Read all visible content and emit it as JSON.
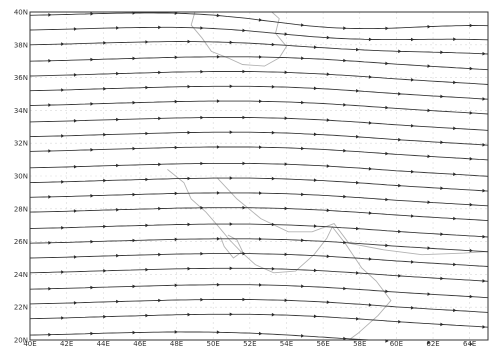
{
  "chart_data": {
    "type": "streamline",
    "x": {
      "range": [
        40,
        65
      ],
      "ticks": [
        40,
        42,
        44,
        46,
        48,
        50,
        52,
        54,
        56,
        58,
        60,
        62,
        64
      ],
      "tick_labels": [
        "40E",
        "42E",
        "44E",
        "46E",
        "48E",
        "50E",
        "52E",
        "54E",
        "56E",
        "58E",
        "60E",
        "62E",
        "64E"
      ]
    },
    "y": {
      "range": [
        20,
        40
      ],
      "ticks": [
        20,
        22,
        24,
        26,
        28,
        30,
        32,
        34,
        36,
        38,
        40
      ],
      "tick_labels": [
        "20N",
        "22N",
        "24N",
        "26N",
        "28N",
        "30N",
        "32N",
        "34N",
        "36N",
        "38N",
        "40N"
      ]
    },
    "grid": "dashed",
    "streamlines": {
      "direction": "eastward",
      "start_lat": [
        20.3,
        21.3,
        22.2,
        23.1,
        24.1,
        25.0,
        25.9,
        26.8,
        27.8,
        28.7,
        29.6,
        30.5,
        31.5,
        32.4,
        33.3,
        34.3,
        35.2,
        36.1,
        37.0,
        38.0,
        38.9,
        39.8
      ],
      "lat_shift": [
        [
          40,
          0.0
        ],
        [
          42,
          0.05
        ],
        [
          44,
          0.12
        ],
        [
          46,
          0.18
        ],
        [
          48,
          0.24
        ],
        [
          50,
          0.27
        ],
        [
          52,
          0.27
        ],
        [
          54,
          0.22
        ],
        [
          56,
          0.12
        ],
        [
          58,
          -0.02
        ],
        [
          60,
          -0.18
        ],
        [
          62,
          -0.32
        ],
        [
          64,
          -0.45
        ],
        [
          65,
          -0.52
        ]
      ],
      "north_bend": {
        "center_lon": 56.5,
        "width": 6,
        "min_lat": 37,
        "max_lat": 40,
        "amount": -0.9
      },
      "south_bend": {
        "center_lon": 57,
        "width": 7,
        "max_lat": 21,
        "amount": -0.25
      }
    },
    "coastlines": [
      [
        [
          49.0,
          40.0
        ],
        [
          48.8,
          39.2
        ],
        [
          49.4,
          38.4
        ],
        [
          49.9,
          37.6
        ],
        [
          50.8,
          37.2
        ],
        [
          51.6,
          36.8
        ],
        [
          52.8,
          36.7
        ],
        [
          53.6,
          37.2
        ],
        [
          54.0,
          37.9
        ],
        [
          53.4,
          38.7
        ],
        [
          53.6,
          39.6
        ],
        [
          53.2,
          40.0
        ]
      ],
      [
        [
          47.5,
          30.4
        ],
        [
          48.4,
          29.6
        ],
        [
          48.8,
          28.6
        ],
        [
          49.6,
          27.8
        ],
        [
          50.3,
          26.9
        ],
        [
          50.9,
          26.1
        ],
        [
          51.5,
          25.4
        ],
        [
          52.3,
          24.6
        ],
        [
          53.3,
          24.1
        ],
        [
          54.5,
          24.2
        ],
        [
          55.5,
          25.2
        ],
        [
          56.2,
          26.2
        ],
        [
          56.5,
          26.9
        ],
        [
          57.2,
          25.9
        ],
        [
          58.1,
          24.4
        ],
        [
          58.9,
          23.6
        ],
        [
          59.7,
          22.4
        ],
        [
          59.0,
          21.5
        ],
        [
          57.9,
          20.4
        ],
        [
          57.4,
          20.0
        ]
      ],
      [
        [
          50.2,
          29.9
        ],
        [
          51.3,
          28.6
        ],
        [
          52.6,
          27.4
        ],
        [
          54.1,
          26.6
        ],
        [
          55.4,
          26.6
        ],
        [
          56.6,
          27.1
        ],
        [
          57.4,
          25.9
        ],
        [
          59.3,
          25.5
        ],
        [
          61.4,
          25.2
        ],
        [
          63.7,
          25.3
        ],
        [
          65.0,
          25.4
        ]
      ],
      [
        [
          50.4,
          26.3
        ],
        [
          50.6,
          25.7
        ],
        [
          51.1,
          25.0
        ],
        [
          51.6,
          25.4
        ],
        [
          51.3,
          26.1
        ],
        [
          50.8,
          26.4
        ]
      ]
    ]
  }
}
